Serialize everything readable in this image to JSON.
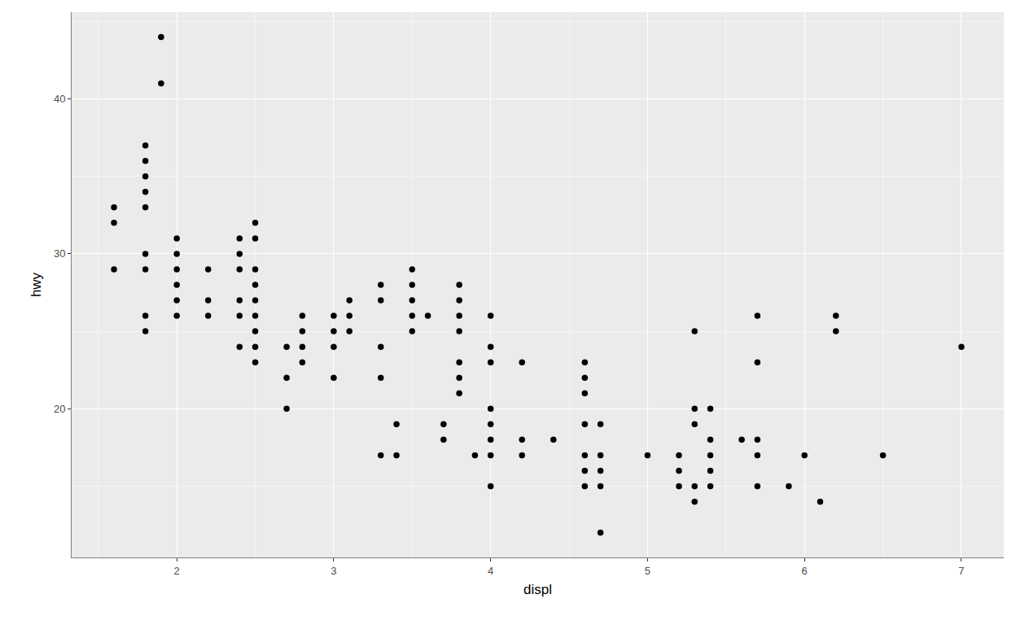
{
  "chart_data": {
    "type": "scatter",
    "x_label": "displ",
    "y_label": "hwy",
    "x": [
      1.6,
      1.6,
      1.6,
      1.8,
      1.8,
      1.8,
      1.8,
      1.8,
      1.8,
      1.8,
      1.8,
      1.8,
      1.9,
      1.9,
      2,
      2,
      2,
      2,
      2,
      2,
      2.2,
      2.2,
      2.2,
      2.4,
      2.4,
      2.4,
      2.4,
      2.4,
      2.4,
      2.5,
      2.5,
      2.5,
      2.5,
      2.5,
      2.5,
      2.5,
      2.5,
      2.5,
      2.7,
      2.7,
      2.7,
      2.8,
      2.8,
      2.8,
      2.8,
      3,
      3,
      3,
      3,
      3.1,
      3.1,
      3.1,
      3.3,
      3.3,
      3.3,
      3.3,
      3.3,
      3.4,
      3.4,
      3.5,
      3.5,
      3.5,
      3.5,
      3.5,
      3.6,
      3.7,
      3.7,
      3.8,
      3.8,
      3.8,
      3.8,
      3.8,
      3.8,
      3.8,
      3.9,
      4,
      4,
      4,
      4,
      4,
      4,
      4,
      4,
      4.2,
      4.2,
      4.2,
      4.4,
      4.6,
      4.6,
      4.6,
      4.6,
      4.6,
      4.6,
      4.6,
      4.7,
      4.7,
      4.7,
      4.7,
      4.7,
      5,
      5.2,
      5.2,
      5.2,
      5.3,
      5.3,
      5.3,
      5.3,
      5.3,
      5.4,
      5.4,
      5.4,
      5.4,
      5.4,
      5.6,
      5.7,
      5.7,
      5.7,
      5.7,
      5.7,
      5.9,
      6,
      6.1,
      6.2,
      6.2,
      6.5,
      7
    ],
    "values": [
      33,
      32,
      29,
      37,
      36,
      35,
      34,
      33,
      30,
      29,
      26,
      25,
      44,
      41,
      31,
      30,
      29,
      28,
      27,
      26,
      29,
      27,
      26,
      31,
      30,
      29,
      27,
      26,
      24,
      32,
      31,
      29,
      28,
      27,
      26,
      25,
      24,
      23,
      24,
      22,
      20,
      26,
      25,
      24,
      23,
      26,
      25,
      24,
      22,
      27,
      26,
      25,
      28,
      27,
      24,
      22,
      17,
      19,
      17,
      29,
      28,
      27,
      26,
      25,
      26,
      19,
      18,
      28,
      27,
      26,
      25,
      23,
      22,
      21,
      17,
      26,
      24,
      23,
      20,
      19,
      18,
      17,
      15,
      23,
      18,
      17,
      18,
      23,
      22,
      21,
      19,
      17,
      16,
      15,
      19,
      17,
      16,
      15,
      12,
      17,
      17,
      16,
      15,
      25,
      20,
      19,
      15,
      14,
      20,
      18,
      17,
      16,
      15,
      18,
      26,
      23,
      18,
      17,
      15,
      15,
      17,
      14,
      26,
      25,
      17,
      24
    ],
    "xlim": [
      1.33,
      7.27
    ],
    "ylim": [
      10.4,
      45.6
    ],
    "xticks": [
      2,
      3,
      4,
      5,
      6,
      7
    ],
    "yticks": [
      20,
      30,
      40
    ],
    "grid": true,
    "color": "#000000",
    "marker": "circle"
  }
}
